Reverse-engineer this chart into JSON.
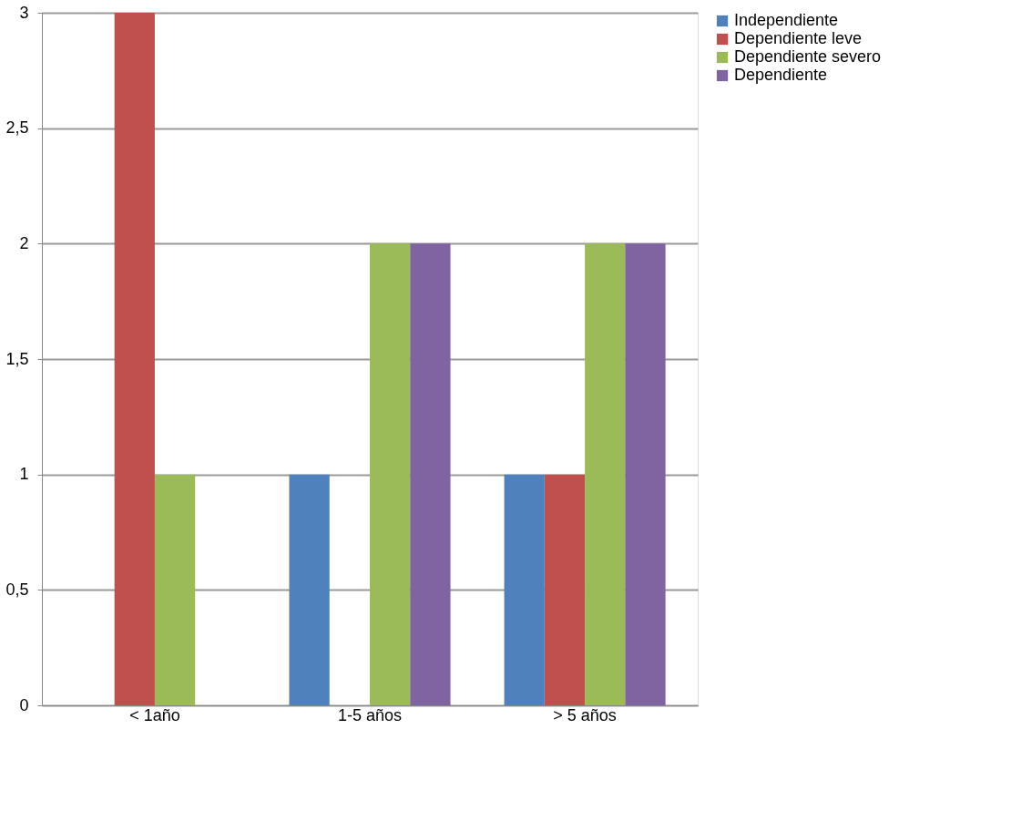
{
  "chart_data": {
    "type": "bar",
    "categories": [
      "< 1año",
      "1-5 años",
      "> 5 años"
    ],
    "series": [
      {
        "name": "Independiente",
        "color": "#4f81bd",
        "values": [
          0,
          1,
          1
        ]
      },
      {
        "name": "Dependiente leve",
        "color": "#c0504d",
        "values": [
          3,
          0,
          1
        ]
      },
      {
        "name": "Dependiente severo",
        "color": "#9bbb59",
        "values": [
          1,
          2,
          2
        ]
      },
      {
        "name": "Dependiente",
        "color": "#8064a2",
        "values": [
          0,
          2,
          2
        ]
      }
    ],
    "ylim": [
      0,
      3
    ],
    "yticks": [
      0,
      {
        "value": 0.5,
        "label": "0,5"
      },
      1,
      {
        "value": 1.5,
        "label": "1,5"
      },
      2,
      {
        "value": 2.5,
        "label": "2,5"
      },
      3
    ],
    "grid": "y",
    "legend": "right"
  }
}
